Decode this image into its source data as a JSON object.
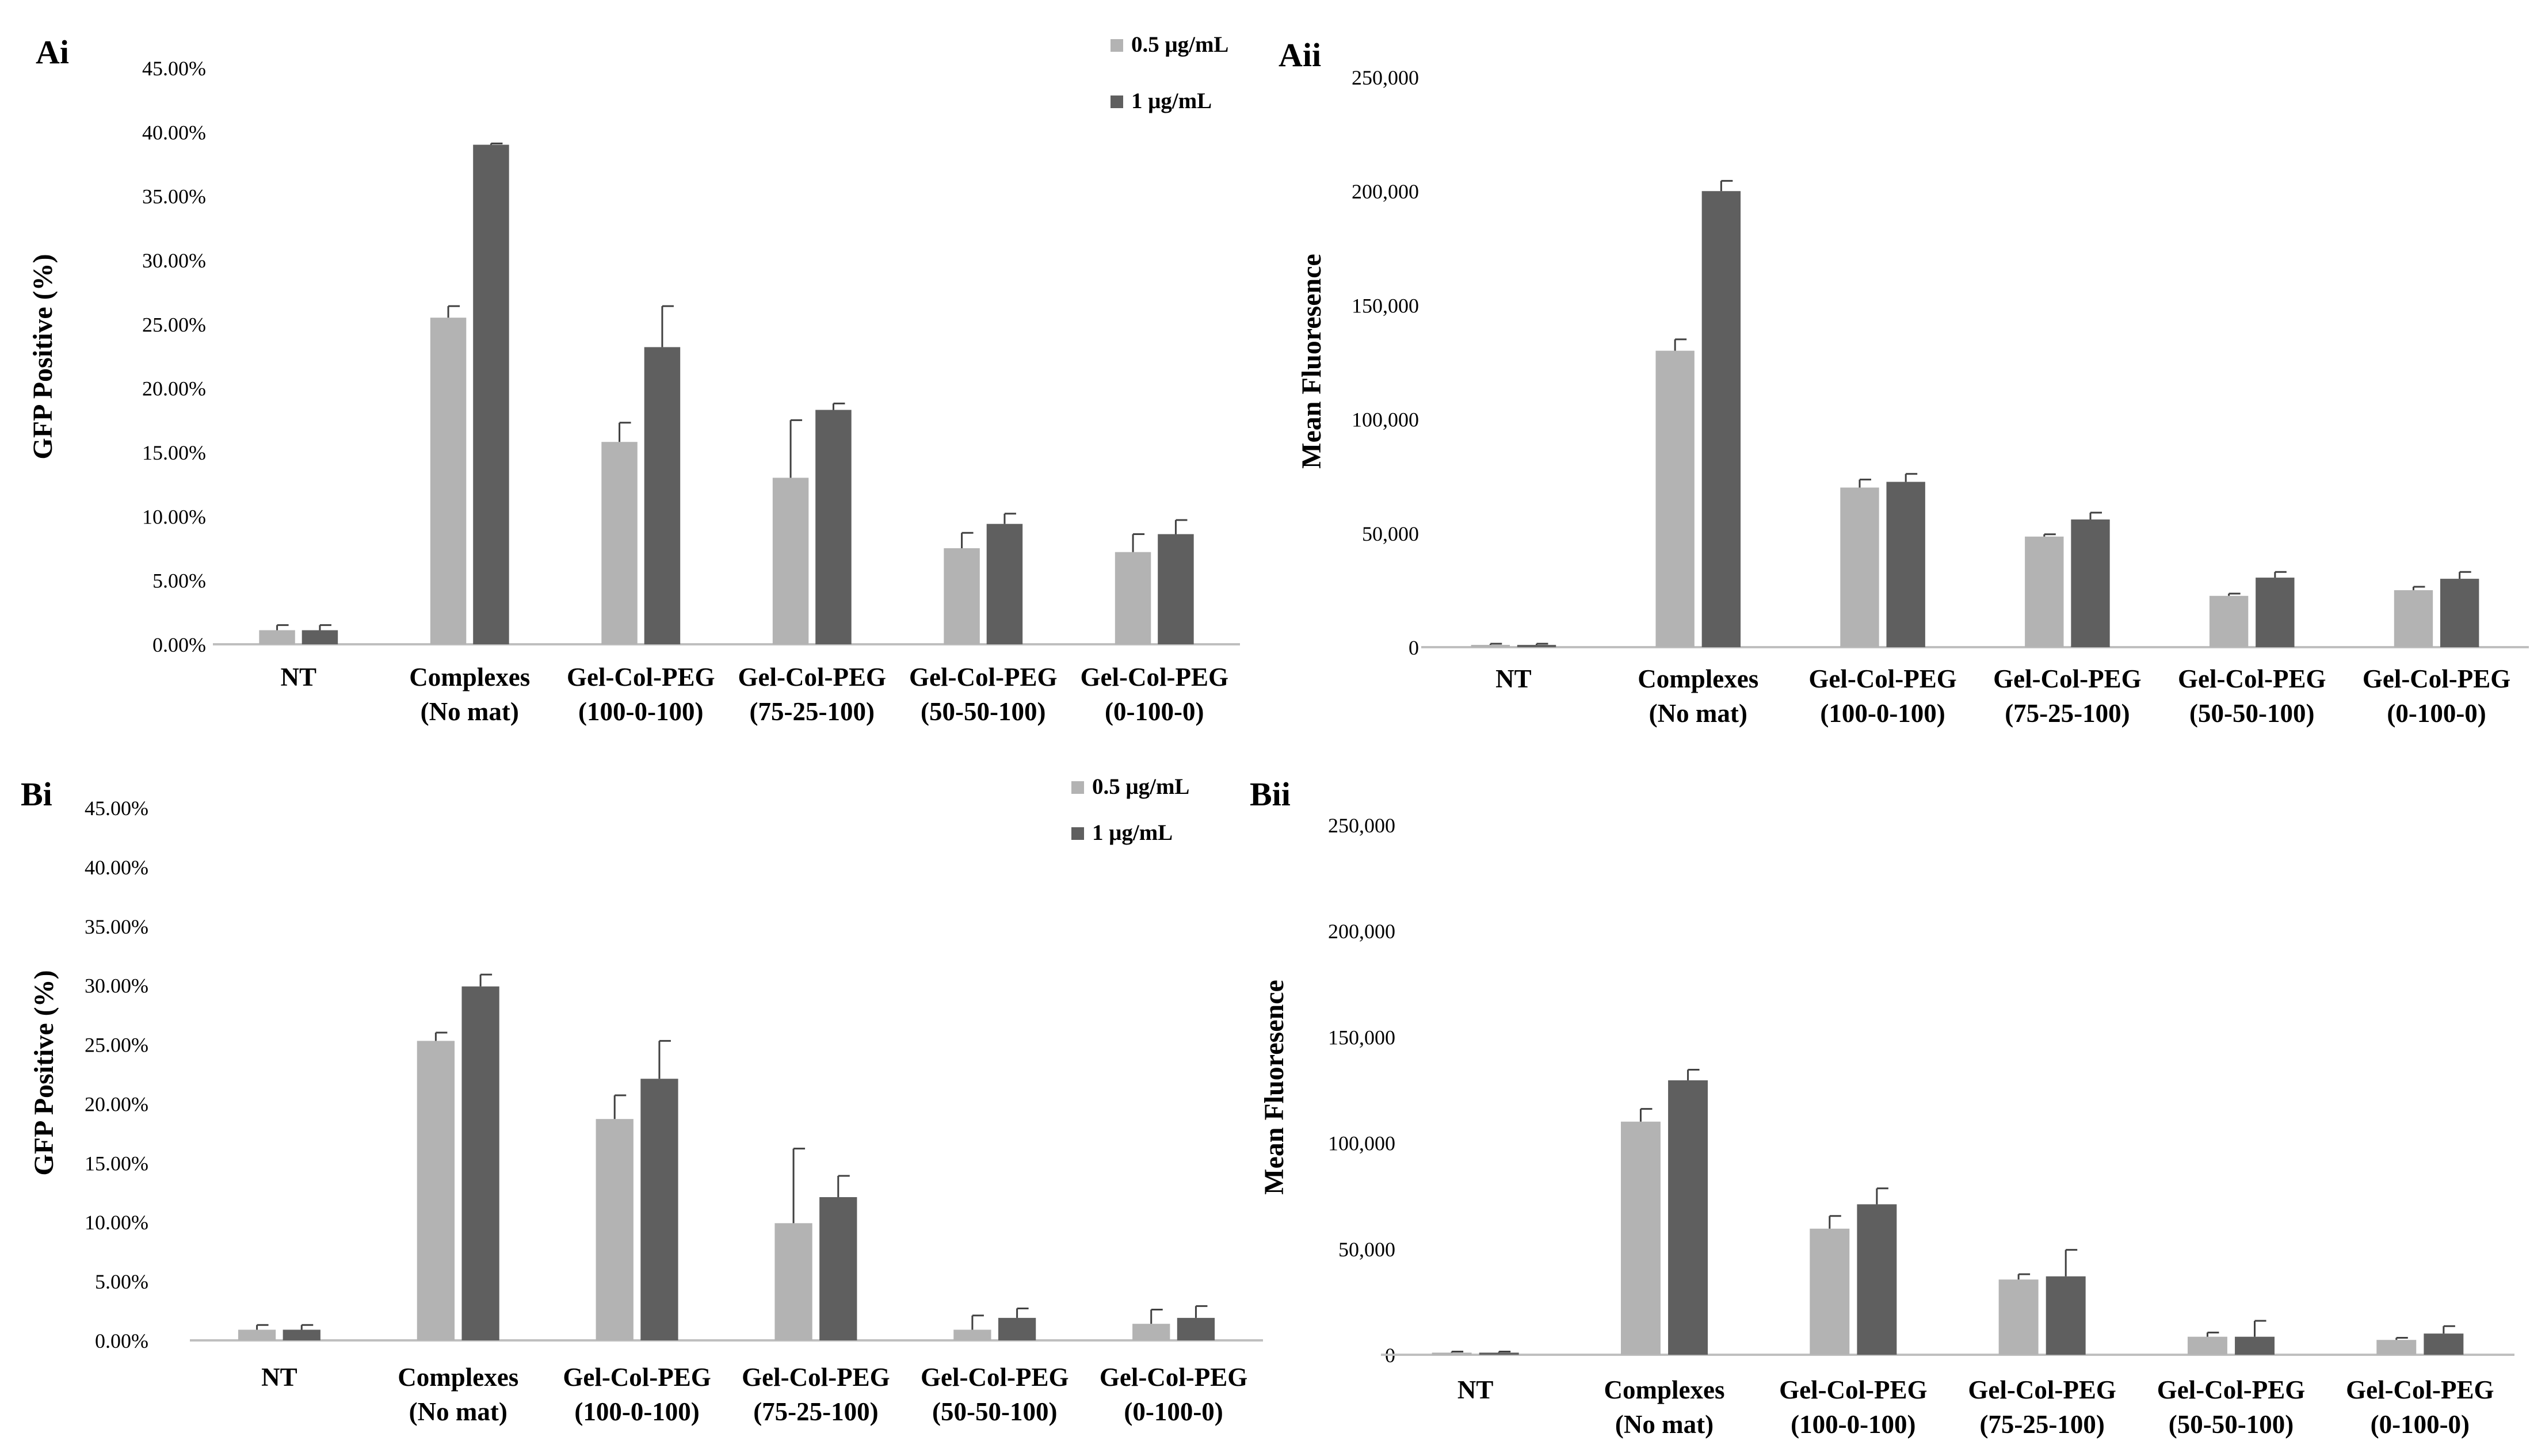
{
  "colors": {
    "series1": "#b3b3b3",
    "series2": "#5f5f5f",
    "axis": "#bfbfbf",
    "error": "#404040"
  },
  "chart_data": [
    {
      "panel": "Ai",
      "type": "bar",
      "ylabel": "GFP Positive (%)",
      "yticks": [
        "0.00%",
        "5.00%",
        "10.00%",
        "15.00%",
        "20.00%",
        "25.00%",
        "30.00%",
        "35.00%",
        "40.00%",
        "45.00%"
      ],
      "ylim": [
        0,
        45
      ],
      "categories": [
        [
          "NT"
        ],
        [
          "Complexes",
          "(No mat)"
        ],
        [
          "Gel-Col-PEG",
          "(100-0-100)"
        ],
        [
          "Gel-Col-PEG",
          "(75-25-100)"
        ],
        [
          "Gel-Col-PEG",
          "(50-50-100)"
        ],
        [
          "Gel-Col-PEG",
          "(0-100-0)"
        ]
      ],
      "legend": true,
      "series": [
        {
          "name": "0.5 μg/mL",
          "values": [
            1.1,
            25.5,
            15.8,
            13.0,
            7.5,
            7.2
          ],
          "errors": [
            0.4,
            0.9,
            1.5,
            4.5,
            1.2,
            1.4
          ]
        },
        {
          "name": "1 μg/mL",
          "values": [
            1.1,
            39.0,
            23.2,
            18.3,
            9.4,
            8.6
          ],
          "errors": [
            0.4,
            0.1,
            3.2,
            0.5,
            0.8,
            1.1
          ]
        }
      ]
    },
    {
      "panel": "Aii",
      "type": "bar",
      "ylabel": "Mean Fluoresence",
      "yticks": [
        "0",
        "50,000",
        "100,000",
        "150,000",
        "200,000",
        "250,000"
      ],
      "ylim": [
        0,
        250000
      ],
      "categories": [
        [
          "NT"
        ],
        [
          "Complexes",
          "(No mat)"
        ],
        [
          "Gel-Col-PEG",
          "(100-0-100)"
        ],
        [
          "Gel-Col-PEG",
          "(75-25-100)"
        ],
        [
          "Gel-Col-PEG",
          "(50-50-100)"
        ],
        [
          "Gel-Col-PEG",
          "(0-100-0)"
        ]
      ],
      "legend": false,
      "series": [
        {
          "name": "0.5 μg/mL",
          "values": [
            1000,
            130000,
            70000,
            48500,
            22500,
            25000
          ],
          "errors": [
            500,
            5000,
            3500,
            1000,
            1000,
            1500
          ]
        },
        {
          "name": "1 μg/mL",
          "values": [
            1000,
            200000,
            72500,
            56000,
            30500,
            30000
          ],
          "errors": [
            500,
            4500,
            3500,
            3000,
            2500,
            3000
          ]
        }
      ]
    },
    {
      "panel": "Bi",
      "type": "bar",
      "ylabel": "GFP Positive (%)",
      "yticks": [
        "0.00%",
        "5.00%",
        "10.00%",
        "15.00%",
        "20.00%",
        "25.00%",
        "30.00%",
        "35.00%",
        "40.00%",
        "45.00%"
      ],
      "ylim": [
        0,
        45
      ],
      "categories": [
        [
          "NT"
        ],
        [
          "Complexes",
          "(No mat)"
        ],
        [
          "Gel-Col-PEG",
          "(100-0-100)"
        ],
        [
          "Gel-Col-PEG",
          "(75-25-100)"
        ],
        [
          "Gel-Col-PEG",
          "(50-50-100)"
        ],
        [
          "Gel-Col-PEG",
          "(0-100-0)"
        ]
      ],
      "legend": true,
      "series": [
        {
          "name": "0.5 μg/mL",
          "values": [
            0.9,
            25.3,
            18.7,
            9.9,
            0.9,
            1.4
          ],
          "errors": [
            0.4,
            0.7,
            2.0,
            6.3,
            1.2,
            1.2
          ]
        },
        {
          "name": "1 μg/mL",
          "values": [
            0.9,
            29.9,
            22.1,
            12.1,
            1.9,
            1.9
          ],
          "errors": [
            0.4,
            1.0,
            3.2,
            1.8,
            0.8,
            1.0
          ]
        }
      ]
    },
    {
      "panel": "Bii",
      "type": "bar",
      "ylabel": "Mean Fluoresence",
      "yticks": [
        "0",
        "50,000",
        "100,000",
        "150,000",
        "200,000",
        "250,000"
      ],
      "ylim": [
        0,
        250000
      ],
      "categories": [
        [
          "NT"
        ],
        [
          "Complexes",
          "(No mat)"
        ],
        [
          "Gel-Col-PEG",
          "(100-0-100)"
        ],
        [
          "Gel-Col-PEG",
          "(75-25-100)"
        ],
        [
          "Gel-Col-PEG",
          "(50-50-100)"
        ],
        [
          "Gel-Col-PEG",
          "(0-100-0)"
        ]
      ],
      "legend": false,
      "series": [
        {
          "name": "0.5 μg/mL",
          "values": [
            1000,
            110000,
            59500,
            35500,
            8500,
            7000
          ],
          "errors": [
            500,
            6000,
            6000,
            2500,
            2000,
            1000
          ]
        },
        {
          "name": "1 μg/mL",
          "values": [
            1000,
            129500,
            71000,
            37000,
            8500,
            10000
          ],
          "errors": [
            500,
            5000,
            7500,
            12500,
            7500,
            3500
          ]
        }
      ]
    }
  ]
}
